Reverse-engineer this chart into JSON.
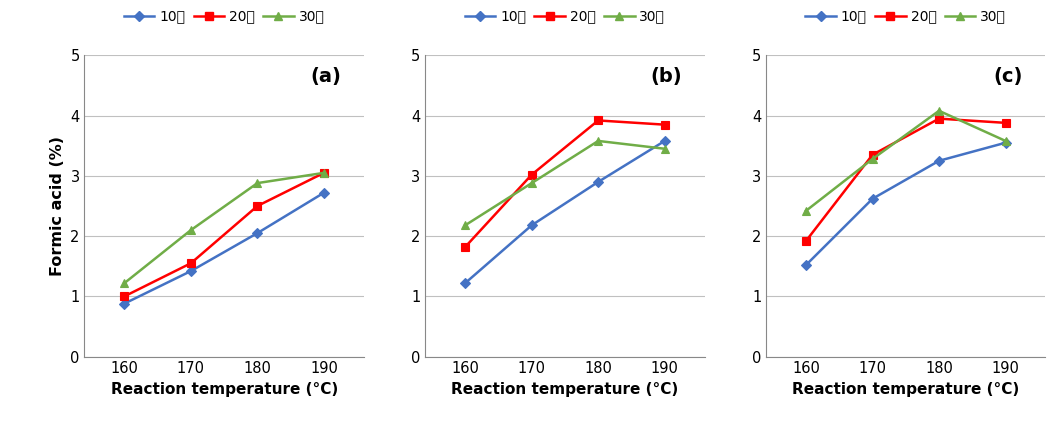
{
  "x": [
    160,
    170,
    180,
    190
  ],
  "panels": [
    {
      "label": "(a)",
      "series": {
        "10min": [
          0.88,
          1.42,
          2.05,
          2.72
        ],
        "20min": [
          1.0,
          1.55,
          2.5,
          3.05
        ],
        "30min": [
          1.22,
          2.1,
          2.88,
          3.05
        ]
      }
    },
    {
      "label": "(b)",
      "series": {
        "10min": [
          1.22,
          2.18,
          2.9,
          3.58
        ],
        "20min": [
          1.82,
          3.02,
          3.92,
          3.85
        ],
        "30min": [
          2.18,
          2.88,
          3.58,
          3.45
        ]
      }
    },
    {
      "label": "(c)",
      "series": {
        "10min": [
          1.52,
          2.62,
          3.25,
          3.55
        ],
        "20min": [
          1.92,
          3.35,
          3.95,
          3.88
        ],
        "30min": [
          2.42,
          3.28,
          4.08,
          3.58
        ]
      }
    }
  ],
  "colors": {
    "10min": "#4472C4",
    "20min": "#FF0000",
    "30min": "#70AD47"
  },
  "markers": {
    "10min": "D",
    "20min": "s",
    "30min": "^"
  },
  "legend_labels": [
    "10분",
    "20분",
    "30분"
  ],
  "ylabel": "Formic acid (%)",
  "xlabel": "Reaction temperature (°C)",
  "ylim": [
    0,
    5
  ],
  "yticks": [
    0,
    1,
    2,
    3,
    4,
    5
  ],
  "background_color": "#ffffff",
  "grid_color": "#c0c0c0"
}
